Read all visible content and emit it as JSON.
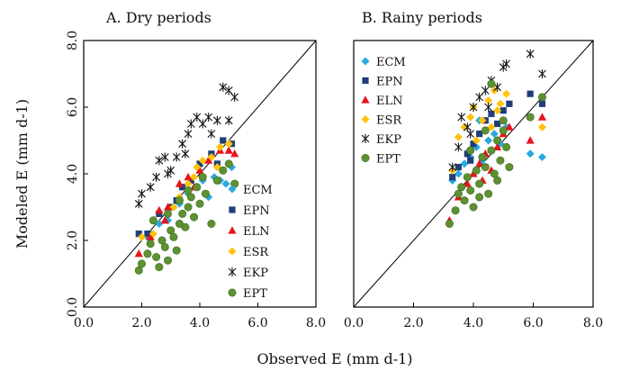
{
  "chart_data": [
    {
      "type": "scatter",
      "title": "A. Dry periods",
      "xlabel": "Observed E (mm d-1)",
      "ylabel": "Modeled E (mm d-1)",
      "xlim": [
        0,
        8
      ],
      "ylim": [
        0,
        8
      ],
      "xticks": [
        "0.0",
        "2.0",
        "4.0",
        "6.0",
        "8.0"
      ],
      "yticks": [
        "0.0",
        "2.0",
        "4.0",
        "6.0",
        "8.0"
      ],
      "reference_line": "1:1",
      "legend_position": "lower-right",
      "series": [
        {
          "name": "ECM",
          "color": "#29a9e0",
          "marker": "diamond",
          "points": [
            [
              2.3,
              2.2
            ],
            [
              2.6,
              2.5
            ],
            [
              2.9,
              2.6
            ],
            [
              3.1,
              3.0
            ],
            [
              3.3,
              3.1
            ],
            [
              3.6,
              3.4
            ],
            [
              3.9,
              3.6
            ],
            [
              4.1,
              3.8
            ],
            [
              4.3,
              3.3
            ],
            [
              4.5,
              3.9
            ],
            [
              4.7,
              3.8
            ],
            [
              4.9,
              3.7
            ],
            [
              5.1,
              4.2
            ],
            [
              3.4,
              2.8
            ],
            [
              2.2,
              2.1
            ]
          ]
        },
        {
          "name": "EPN",
          "color": "#1f3f7a",
          "marker": "square",
          "points": [
            [
              1.9,
              2.2
            ],
            [
              2.2,
              2.2
            ],
            [
              2.6,
              2.8
            ],
            [
              3.0,
              3.0
            ],
            [
              3.4,
              3.6
            ],
            [
              3.7,
              3.8
            ],
            [
              4.0,
              4.3
            ],
            [
              4.4,
              4.6
            ],
            [
              4.8,
              5.0
            ],
            [
              5.1,
              4.9
            ],
            [
              4.6,
              4.3
            ],
            [
              3.2,
              3.2
            ]
          ]
        },
        {
          "name": "ELN",
          "color": "#e8141b",
          "marker": "triangle",
          "points": [
            [
              1.9,
              1.6
            ],
            [
              2.3,
              2.1
            ],
            [
              2.6,
              2.9
            ],
            [
              2.9,
              3.0
            ],
            [
              3.3,
              3.7
            ],
            [
              3.6,
              3.9
            ],
            [
              4.0,
              4.1
            ],
            [
              4.3,
              4.4
            ],
            [
              4.7,
              4.7
            ],
            [
              5.0,
              4.7
            ],
            [
              5.2,
              4.6
            ],
            [
              3.8,
              3.6
            ],
            [
              2.8,
              2.6
            ]
          ]
        },
        {
          "name": "ESR",
          "color": "#ffc20e",
          "marker": "diamond",
          "points": [
            [
              2.0,
              2.1
            ],
            [
              2.4,
              2.2
            ],
            [
              2.9,
              2.8
            ],
            [
              3.3,
              3.3
            ],
            [
              3.6,
              3.7
            ],
            [
              3.9,
              4.2
            ],
            [
              4.1,
              4.4
            ],
            [
              4.4,
              4.5
            ],
            [
              4.7,
              4.8
            ],
            [
              5.0,
              4.9
            ],
            [
              3.8,
              3.9
            ],
            [
              3.1,
              3.0
            ],
            [
              4.6,
              4.2
            ]
          ]
        },
        {
          "name": "EKP",
          "color": "#111111",
          "marker": "x",
          "points": [
            [
              1.9,
              3.1
            ],
            [
              2.0,
              3.4
            ],
            [
              2.3,
              3.6
            ],
            [
              2.5,
              3.9
            ],
            [
              2.6,
              4.4
            ],
            [
              2.8,
              4.5
            ],
            [
              3.0,
              4.1
            ],
            [
              3.2,
              4.5
            ],
            [
              3.4,
              4.9
            ],
            [
              3.6,
              5.2
            ],
            [
              3.7,
              5.5
            ],
            [
              3.9,
              5.7
            ],
            [
              4.1,
              5.5
            ],
            [
              4.3,
              5.7
            ],
            [
              4.6,
              5.6
            ],
            [
              4.8,
              6.6
            ],
            [
              5.0,
              6.5
            ],
            [
              5.2,
              6.3
            ],
            [
              4.4,
              5.2
            ],
            [
              3.5,
              4.6
            ],
            [
              2.9,
              4.0
            ],
            [
              5.0,
              5.6
            ]
          ]
        },
        {
          "name": "EPT",
          "color": "#5d9131",
          "marker": "circle",
          "points": [
            [
              1.9,
              1.1
            ],
            [
              2.0,
              1.3
            ],
            [
              2.2,
              1.6
            ],
            [
              2.3,
              1.9
            ],
            [
              2.5,
              1.5
            ],
            [
              2.6,
              1.2
            ],
            [
              2.7,
              2.0
            ],
            [
              2.8,
              1.8
            ],
            [
              2.9,
              1.4
            ],
            [
              3.0,
              2.3
            ],
            [
              3.1,
              2.1
            ],
            [
              3.2,
              1.7
            ],
            [
              3.3,
              2.5
            ],
            [
              3.4,
              2.8
            ],
            [
              3.5,
              2.4
            ],
            [
              3.6,
              3.0
            ],
            [
              3.7,
              3.3
            ],
            [
              3.8,
              2.7
            ],
            [
              3.9,
              3.6
            ],
            [
              4.0,
              3.1
            ],
            [
              4.1,
              3.9
            ],
            [
              4.2,
              3.4
            ],
            [
              4.4,
              2.5
            ],
            [
              4.6,
              3.8
            ],
            [
              4.8,
              4.1
            ],
            [
              5.0,
              4.3
            ],
            [
              5.2,
              3.7
            ],
            [
              2.4,
              2.6
            ],
            [
              2.9,
              2.8
            ],
            [
              3.3,
              3.2
            ],
            [
              3.6,
              3.5
            ]
          ]
        }
      ]
    },
    {
      "type": "scatter",
      "title": "B. Rainy periods",
      "xlabel": "Observed E (mm d-1)",
      "ylabel": "",
      "xlim": [
        0,
        8
      ],
      "ylim": [
        0,
        8
      ],
      "xticks": [
        "0.0",
        "2.0",
        "4.0",
        "6.0",
        "8.0"
      ],
      "reference_line": "1:1",
      "legend_position": "upper-left",
      "series": [
        {
          "name": "ECM",
          "color": "#29a9e0",
          "marker": "diamond",
          "points": [
            [
              3.3,
              3.8
            ],
            [
              3.5,
              4.0
            ],
            [
              3.7,
              4.3
            ],
            [
              3.9,
              4.5
            ],
            [
              4.1,
              4.8
            ],
            [
              4.3,
              4.4
            ],
            [
              4.5,
              5.0
            ],
            [
              4.7,
              5.2
            ],
            [
              4.9,
              4.9
            ],
            [
              5.1,
              5.4
            ],
            [
              5.9,
              4.6
            ],
            [
              6.3,
              4.5
            ],
            [
              4.2,
              5.6
            ]
          ]
        },
        {
          "name": "EPN",
          "color": "#1f3f7a",
          "marker": "square",
          "points": [
            [
              3.3,
              3.9
            ],
            [
              3.5,
              4.2
            ],
            [
              3.8,
              4.6
            ],
            [
              4.0,
              4.9
            ],
            [
              4.2,
              5.2
            ],
            [
              4.4,
              5.6
            ],
            [
              4.6,
              5.8
            ],
            [
              4.8,
              5.5
            ],
            [
              5.0,
              5.9
            ],
            [
              5.2,
              6.1
            ],
            [
              5.9,
              6.4
            ],
            [
              6.3,
              6.1
            ],
            [
              3.9,
              4.4
            ]
          ]
        },
        {
          "name": "ELN",
          "color": "#e8141b",
          "marker": "triangle",
          "points": [
            [
              3.2,
              2.6
            ],
            [
              3.5,
              3.3
            ],
            [
              3.8,
              3.7
            ],
            [
              4.0,
              4.0
            ],
            [
              4.2,
              4.3
            ],
            [
              4.4,
              4.6
            ],
            [
              4.6,
              4.1
            ],
            [
              4.8,
              4.8
            ],
            [
              5.0,
              5.2
            ],
            [
              5.2,
              5.4
            ],
            [
              5.9,
              5.0
            ],
            [
              6.3,
              5.7
            ],
            [
              4.3,
              3.8
            ]
          ]
        },
        {
          "name": "ESR",
          "color": "#ffc20e",
          "marker": "diamond",
          "points": [
            [
              3.3,
              4.1
            ],
            [
              3.5,
              5.1
            ],
            [
              3.7,
              5.4
            ],
            [
              3.9,
              5.7
            ],
            [
              4.1,
              5.0
            ],
            [
              4.3,
              5.6
            ],
            [
              4.5,
              6.2
            ],
            [
              4.7,
              6.5
            ],
            [
              4.9,
              6.1
            ],
            [
              5.1,
              6.4
            ],
            [
              4.6,
              5.4
            ],
            [
              6.3,
              5.4
            ],
            [
              4.0,
              6.0
            ],
            [
              4.8,
              5.9
            ]
          ]
        },
        {
          "name": "EKP",
          "color": "#111111",
          "marker": "x",
          "points": [
            [
              3.3,
              4.2
            ],
            [
              3.5,
              4.8
            ],
            [
              3.6,
              5.7
            ],
            [
              3.8,
              5.4
            ],
            [
              4.0,
              6.0
            ],
            [
              4.2,
              6.3
            ],
            [
              4.4,
              6.5
            ],
            [
              4.6,
              6.8
            ],
            [
              4.8,
              6.6
            ],
            [
              5.0,
              7.2
            ],
            [
              5.1,
              7.3
            ],
            [
              5.9,
              7.6
            ],
            [
              6.3,
              7.0
            ],
            [
              4.5,
              6.0
            ],
            [
              3.9,
              5.2
            ]
          ]
        },
        {
          "name": "EPT",
          "color": "#5d9131",
          "marker": "circle",
          "points": [
            [
              3.2,
              2.5
            ],
            [
              3.4,
              2.9
            ],
            [
              3.5,
              3.4
            ],
            [
              3.6,
              3.6
            ],
            [
              3.7,
              3.2
            ],
            [
              3.8,
              3.9
            ],
            [
              3.9,
              3.5
            ],
            [
              4.0,
              3.0
            ],
            [
              4.1,
              4.1
            ],
            [
              4.2,
              3.7
            ],
            [
              4.3,
              4.5
            ],
            [
              4.4,
              4.2
            ],
            [
              4.5,
              3.4
            ],
            [
              4.6,
              4.7
            ],
            [
              4.7,
              4.0
            ],
            [
              4.8,
              5.0
            ],
            [
              4.9,
              4.4
            ],
            [
              5.0,
              5.3
            ],
            [
              5.1,
              4.8
            ],
            [
              5.2,
              4.2
            ],
            [
              5.9,
              5.7
            ],
            [
              6.3,
              6.3
            ],
            [
              4.6,
              6.7
            ],
            [
              4.4,
              5.3
            ],
            [
              3.9,
              4.7
            ],
            [
              4.2,
              3.3
            ],
            [
              4.8,
              3.8
            ],
            [
              5.0,
              5.6
            ]
          ]
        }
      ]
    }
  ]
}
